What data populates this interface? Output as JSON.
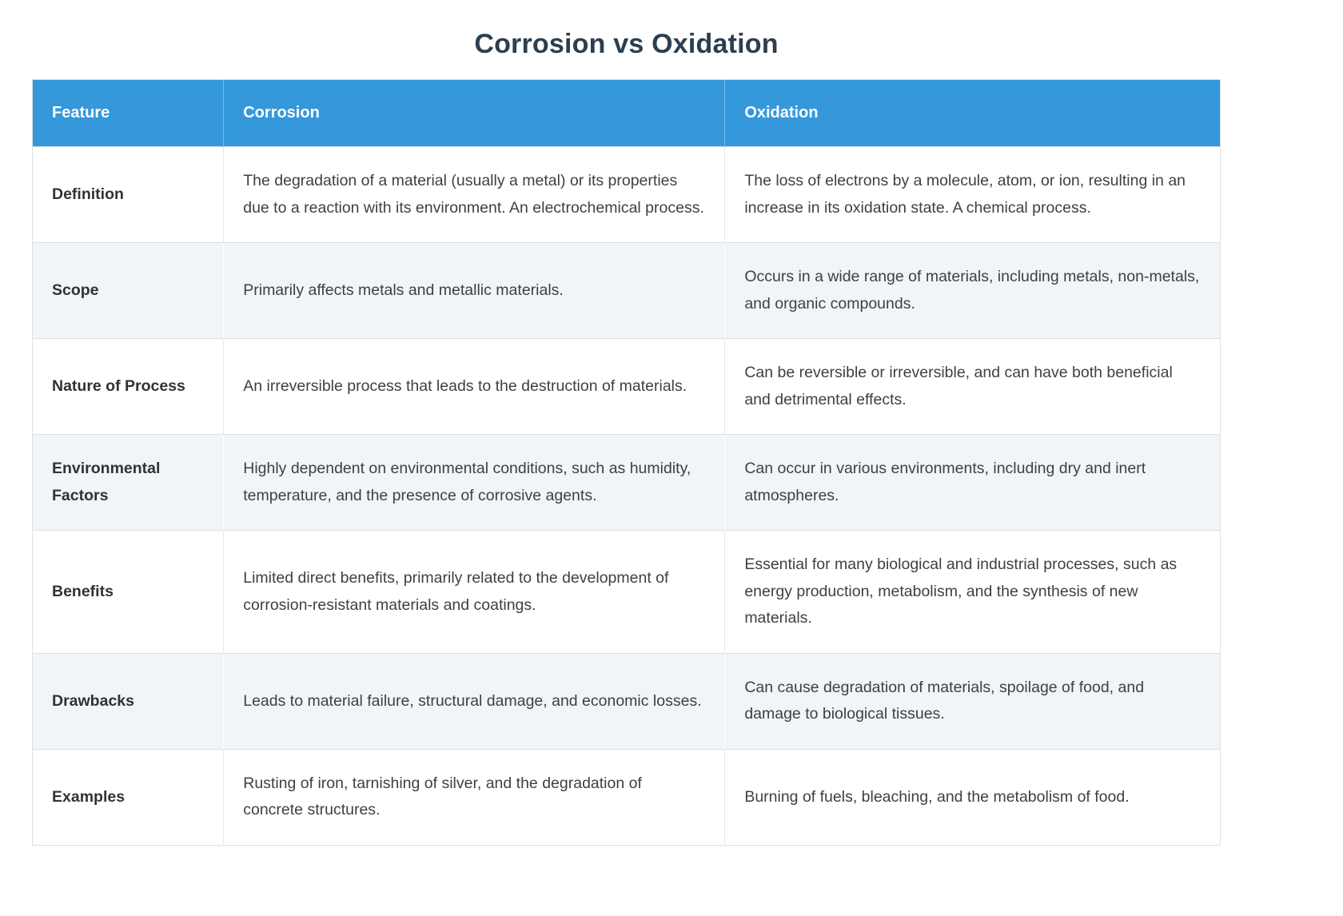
{
  "page": {
    "title": "Corrosion vs Oxidation"
  },
  "colors": {
    "header_background": "#3498db",
    "header_text": "#ffffff",
    "title_text": "#2c3e50",
    "striped_row_background": "#f1f4f8",
    "body_text": "#3d4144",
    "border": "#dcdfe3"
  },
  "table": {
    "columns": [
      "Feature",
      "Corrosion",
      "Oxidation"
    ],
    "rows": [
      {
        "feature": "Definition",
        "corrosion": "The degradation of a material (usually a metal) or its properties due to a reaction with its environment. An electrochemical process.",
        "oxidation": "The loss of electrons by a molecule, atom, or ion, resulting in an increase in its oxidation state. A chemical process."
      },
      {
        "feature": "Scope",
        "corrosion": "Primarily affects metals and metallic materials.",
        "oxidation": "Occurs in a wide range of materials, including metals, non-metals, and organic compounds."
      },
      {
        "feature": "Nature of Process",
        "corrosion": "An irreversible process that leads to the destruction of materials.",
        "oxidation": "Can be reversible or irreversible, and can have both beneficial and detrimental effects."
      },
      {
        "feature": "Environmental Factors",
        "corrosion": "Highly dependent on environmental conditions, such as humidity, temperature, and the presence of corrosive agents.",
        "oxidation": "Can occur in various environments, including dry and inert atmospheres."
      },
      {
        "feature": "Benefits",
        "corrosion": "Limited direct benefits, primarily related to the development of corrosion-resistant materials and coatings.",
        "oxidation": "Essential for many biological and industrial processes, such as energy production, metabolism, and the synthesis of new materials."
      },
      {
        "feature": "Drawbacks",
        "corrosion": "Leads to material failure, structural damage, and economic losses.",
        "oxidation": "Can cause degradation of materials, spoilage of food, and damage to biological tissues."
      },
      {
        "feature": "Examples",
        "corrosion": "Rusting of iron, tarnishing of silver, and the degradation of concrete structures.",
        "oxidation": "Burning of fuels, bleaching, and the metabolism of food."
      }
    ]
  }
}
